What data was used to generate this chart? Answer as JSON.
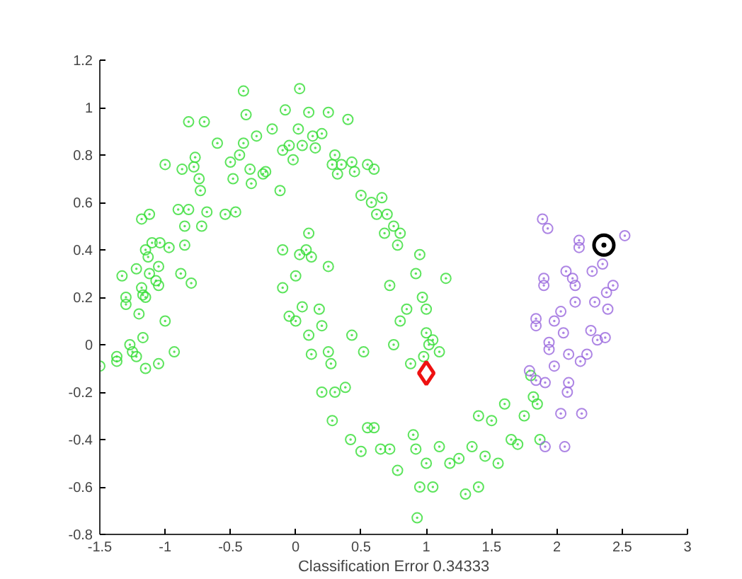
{
  "chart_data": {
    "type": "scatter",
    "xlabel": "Classification Error 0.34333",
    "xlim": [
      -1.5,
      3
    ],
    "xticks": [
      -1.5,
      -1,
      -0.5,
      0,
      0.5,
      1,
      1.5,
      2,
      2.5,
      3
    ],
    "ylim": [
      -0.8,
      1.2
    ],
    "yticks": [
      -0.8,
      -0.6,
      -0.4,
      -0.2,
      0,
      0.2,
      0.4,
      0.6,
      0.8,
      1,
      1.2
    ],
    "grid": false,
    "series": [
      {
        "color": "#33dd33",
        "marker": "circle",
        "x": [
          -1.5,
          -1.37,
          -1.37,
          -1.33,
          -1.3,
          -1.3,
          -1.27,
          -1.25,
          -1.22,
          -1.2,
          -1.22,
          -1.18,
          -1.17,
          -1.15,
          -1.17,
          -1.15,
          -1.15,
          -1.13,
          -1.12,
          -1.1,
          -1.18,
          -1.12,
          -1.07,
          -1.05,
          -1.05,
          -1.04,
          -1.05,
          -1.0,
          -1.0,
          -0.97,
          -0.93,
          -0.9,
          -0.88,
          -0.87,
          -0.85,
          -0.85,
          -0.82,
          -0.82,
          -0.8,
          -0.78,
          -0.77,
          -0.74,
          -0.73,
          -0.7,
          -0.72,
          -0.68,
          -0.6,
          -0.54,
          -0.5,
          -0.48,
          -0.46,
          -0.43,
          -0.4,
          -0.4,
          -0.38,
          -0.35,
          -0.34,
          -0.3,
          -0.25,
          -0.23,
          -0.18,
          -0.12,
          -0.1,
          -0.08,
          -0.05,
          -0.02,
          0.02,
          0.03,
          0.05,
          0.1,
          0.13,
          0.15,
          0.2,
          0.25,
          0.28,
          0.3,
          0.32,
          0.35,
          0.4,
          0.43,
          0.45,
          0.5,
          0.55,
          0.58,
          0.6,
          0.62,
          0.66,
          0.7,
          0.75,
          0.8,
          0.68,
          0.78,
          0.92,
          0.95,
          0.97,
          1.0,
          1.0,
          1.02,
          0.98,
          1.05,
          1.1,
          1.15,
          0.85,
          0.88,
          0.8,
          0.75,
          0.72,
          -0.1,
          -0.1,
          -0.05,
          0,
          0,
          0.03,
          0.05,
          0.08,
          0.1,
          0.12,
          0.1,
          0.12,
          0.18,
          0.2,
          0.25,
          0.25,
          0.27,
          0.3,
          0.2,
          0.28,
          0.38,
          0.42,
          0.5,
          0.43,
          0.52,
          0.55,
          0.6,
          0.65,
          0.72,
          0.78,
          0.9,
          0.92,
          0.95,
          0.93,
          1.0,
          1.05,
          1.1,
          1.18,
          1.25,
          1.3,
          1.35,
          1.4,
          1.4,
          1.45,
          1.5,
          1.55,
          1.6,
          1.65,
          1.7,
          1.75,
          1.8,
          1.82,
          1.85,
          1.87
        ],
        "values": [
          -0.09,
          -0.05,
          -0.07,
          0.29,
          0.2,
          0.17,
          0,
          -0.03,
          0.32,
          0.13,
          -0.05,
          0.24,
          0.21,
          0.2,
          0.03,
          -0.1,
          0.4,
          0.37,
          0.3,
          0.43,
          0.53,
          0.55,
          0.27,
          0.25,
          0.33,
          0.43,
          -0.08,
          0.1,
          0.76,
          0.41,
          -0.03,
          0.57,
          0.3,
          0.74,
          0.5,
          0.42,
          0.94,
          0.57,
          0.26,
          0.75,
          0.79,
          0.7,
          0.65,
          0.94,
          0.5,
          0.56,
          0.85,
          0.55,
          0.77,
          0.7,
          0.56,
          0.8,
          0.85,
          1.07,
          0.97,
          0.74,
          0.68,
          0.88,
          0.72,
          0.73,
          0.91,
          0.65,
          0.82,
          0.99,
          0.84,
          0.78,
          0.91,
          1.08,
          0.84,
          0.98,
          0.88,
          0.83,
          0.89,
          0.98,
          0.76,
          0.8,
          0.72,
          0.76,
          0.95,
          0.77,
          0.73,
          0.63,
          0.76,
          0.6,
          0.74,
          0.55,
          0.62,
          0.55,
          0.5,
          0.47,
          0.47,
          0.42,
          0.3,
          0.38,
          0.2,
          0.15,
          0.05,
          0.0,
          -0.05,
          0.02,
          -0.03,
          0.28,
          0.15,
          -0.08,
          0.1,
          0.0,
          0.25,
          0.4,
          0.24,
          0.12,
          0.1,
          0.29,
          0.38,
          0.16,
          0.4,
          0.47,
          0.37,
          0.04,
          -0.04,
          0.15,
          0.08,
          -0.03,
          0.33,
          -0.08,
          -0.2,
          -0.2,
          -0.32,
          -0.18,
          -0.4,
          -0.45,
          0.04,
          -0.03,
          -0.35,
          -0.35,
          -0.44,
          -0.44,
          -0.53,
          -0.38,
          -0.44,
          -0.6,
          -0.73,
          -0.5,
          -0.6,
          -0.43,
          -0.5,
          -0.48,
          -0.63,
          -0.43,
          -0.3,
          -0.6,
          -0.47,
          -0.32,
          -0.5,
          -0.25,
          -0.4,
          -0.42,
          -0.3,
          -0.13,
          -0.22,
          -0.25,
          -0.4
        ]
      },
      {
        "color": "#9966dd",
        "marker": "circle",
        "x": [
          1.89,
          1.93,
          2.17,
          2.17,
          2.52,
          2.35,
          2.27,
          2.07,
          2.12,
          1.9,
          1.9,
          2.14,
          2.14,
          2.29,
          2.43,
          2.38,
          2.39,
          2.03,
          1.98,
          1.84,
          1.84,
          2.05,
          2.26,
          2.31,
          2.37,
          1.94,
          1.94,
          2.09,
          2.18,
          2.23,
          1.79,
          1.84,
          1.91,
          1.98,
          2.09,
          2.08,
          2.03,
          2.06,
          1.91,
          2.19
        ],
        "values": [
          0.53,
          0.49,
          0.44,
          0.41,
          0.46,
          0.34,
          0.31,
          0.31,
          0.28,
          0.28,
          0.25,
          0.25,
          0.18,
          0.18,
          0.25,
          0.22,
          0.15,
          0.14,
          0.1,
          0.11,
          0.08,
          0.05,
          0.06,
          0.02,
          0.03,
          0.01,
          -0.02,
          -0.04,
          -0.07,
          -0.04,
          -0.11,
          -0.15,
          -0.16,
          -0.09,
          -0.16,
          -0.2,
          -0.29,
          -0.43,
          -0.43,
          -0.29
        ]
      },
      {
        "color": "#ee1111",
        "marker": "diamond",
        "x": [
          1.0
        ],
        "values": [
          -0.12
        ]
      },
      {
        "color": "#000000",
        "marker": "circle",
        "x": [
          2.36
        ],
        "values": [
          0.42
        ]
      }
    ]
  }
}
